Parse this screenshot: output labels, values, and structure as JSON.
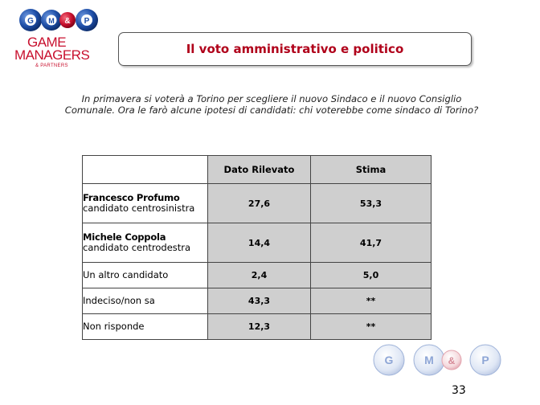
{
  "logo": {
    "balls": [
      "G",
      "M",
      "&",
      "P"
    ],
    "line1": "GAME",
    "line2": "MANAGERS",
    "sub": "& PARTNERS"
  },
  "title": "Il voto amministrativo e politico",
  "question": "In primavera si voterà a Torino per scegliere il nuovo Sindaco e il nuovo Consiglio Comunale. Ora le farò alcune ipotesi di candidati: chi voterebbe come sindaco di Torino?",
  "table": {
    "headers": [
      "",
      "Dato Rilevato",
      "Stima"
    ],
    "rows": [
      {
        "name": "Francesco Profumo",
        "role": "candidato centrosinistra",
        "dato": "27,6",
        "stima": "53,3"
      },
      {
        "name": "Michele Coppola",
        "role": "candidato centrodestra",
        "dato": "14,4",
        "stima": "41,7"
      },
      {
        "name": "",
        "role": "Un altro candidato",
        "dato": "2,4",
        "stima": "5,0"
      },
      {
        "name": "",
        "role": "Indeciso/non sa",
        "dato": "43,3",
        "stima": "**"
      },
      {
        "name": "",
        "role": "Non risponde",
        "dato": "12,3",
        "stima": "**"
      }
    ]
  },
  "footer_balls": [
    "G",
    "M",
    "&",
    "P"
  ],
  "page_number": "33",
  "colors": {
    "accent": "#c8102e",
    "title": "#b0001a",
    "cell_fill": "#cfcfcf",
    "ball_blue": "#1f4fa8"
  }
}
